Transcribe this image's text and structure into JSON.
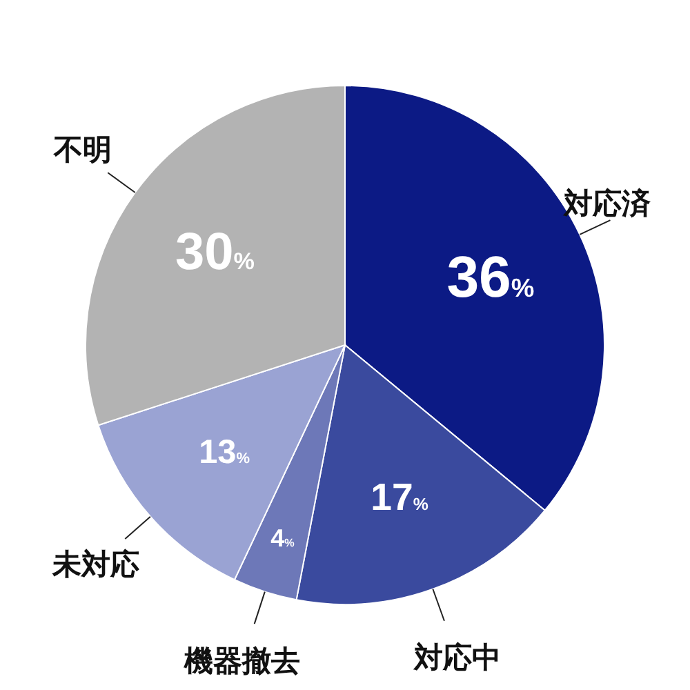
{
  "chart_data": {
    "type": "pie",
    "categories": [
      "対応済",
      "対応中",
      "機器撤去",
      "未対応",
      "不明"
    ],
    "values": [
      36,
      17,
      4,
      13,
      30
    ],
    "colors": [
      "#0c1a85",
      "#3a4a9e",
      "#6d78b8",
      "#9aa3d3",
      "#b3b3b3"
    ],
    "value_labels": [
      "36%",
      "17%",
      "4%",
      "13%",
      "30%"
    ]
  }
}
